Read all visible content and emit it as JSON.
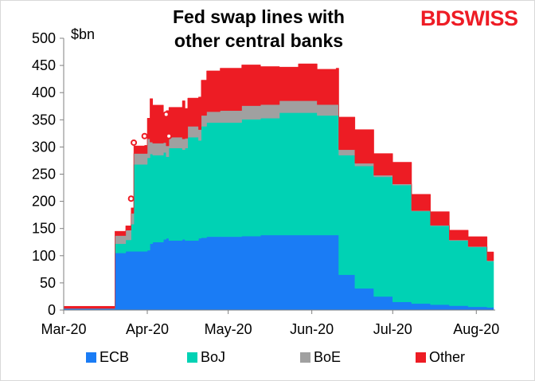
{
  "title_line1": "Fed swap lines with",
  "title_line2": "other central banks",
  "logo": {
    "part1": "BD",
    "part2": "SWISS"
  },
  "colors": {
    "ECB": "#1a7cf5",
    "BoJ": "#00d2b4",
    "BoE": "#a0a0a0",
    "Other": "#ed1c24",
    "axis": "#808080"
  },
  "chart_data": {
    "type": "area",
    "stacked": true,
    "title": "Fed swap lines with other central banks",
    "ylabel": "$bn",
    "ylim": [
      0,
      500
    ],
    "yticks": [
      0,
      50,
      100,
      150,
      200,
      250,
      300,
      350,
      400,
      450,
      500
    ],
    "xticks": [
      "Mar-20",
      "Apr-20",
      "May-20",
      "Jun-20",
      "Jul-20",
      "Aug-20"
    ],
    "legend": [
      "ECB",
      "BoJ",
      "BoE",
      "Other"
    ],
    "legend_position": "bottom",
    "x": [
      "2020-03-01",
      "2020-03-04",
      "2020-03-11",
      "2020-03-18",
      "2020-03-20",
      "2020-03-24",
      "2020-03-26",
      "2020-03-27",
      "2020-03-31",
      "2020-04-01",
      "2020-04-02",
      "2020-04-03",
      "2020-04-07",
      "2020-04-08",
      "2020-04-09",
      "2020-04-14",
      "2020-04-15",
      "2020-04-16",
      "2020-04-20",
      "2020-04-21",
      "2020-04-23",
      "2020-04-28",
      "2020-05-06",
      "2020-05-13",
      "2020-05-20",
      "2020-05-27",
      "2020-06-03",
      "2020-06-10",
      "2020-06-11",
      "2020-06-17",
      "2020-06-24",
      "2020-07-01",
      "2020-07-08",
      "2020-07-15",
      "2020-07-22",
      "2020-07-29",
      "2020-08-05"
    ],
    "series": [
      {
        "name": "ECB",
        "values": [
          3,
          3,
          3,
          3,
          105,
          108,
          108,
          108,
          108,
          110,
          122,
          125,
          130,
          132,
          128,
          130,
          128,
          128,
          132,
          133,
          135,
          135,
          136,
          138,
          138,
          138,
          138,
          138,
          65,
          40,
          25,
          15,
          12,
          10,
          8,
          6,
          5
        ]
      },
      {
        "name": "BoJ",
        "values": [
          0,
          0,
          0,
          0,
          17,
          21,
          50,
          160,
          160,
          170,
          165,
          160,
          160,
          150,
          170,
          165,
          170,
          190,
          180,
          205,
          210,
          210,
          215,
          215,
          225,
          225,
          220,
          220,
          220,
          225,
          220,
          215,
          170,
          145,
          120,
          110,
          85
        ]
      },
      {
        "name": "BoE",
        "values": [
          0,
          0,
          0,
          0,
          15,
          18,
          20,
          20,
          20,
          35,
          22,
          22,
          18,
          20,
          20,
          20,
          18,
          20,
          20,
          20,
          20,
          22,
          25,
          25,
          22,
          22,
          20,
          20,
          10,
          5,
          3,
          2,
          1,
          1,
          1,
          1,
          1
        ]
      },
      {
        "name": "Other",
        "values": [
          4,
          4,
          4,
          4,
          8,
          8,
          10,
          14,
          15,
          38,
          80,
          70,
          55,
          65,
          55,
          70,
          55,
          52,
          60,
          65,
          75,
          78,
          75,
          70,
          62,
          68,
          65,
          67,
          60,
          62,
          40,
          40,
          30,
          25,
          18,
          18,
          16
        ]
      }
    ],
    "markers": [
      {
        "x": "2020-03-26",
        "y": 205
      },
      {
        "x": "2020-03-27",
        "y": 308
      },
      {
        "x": "2020-03-31",
        "y": 320
      },
      {
        "x": "2020-04-08",
        "y": 360
      },
      {
        "x": "2020-04-09",
        "y": 320
      }
    ]
  }
}
